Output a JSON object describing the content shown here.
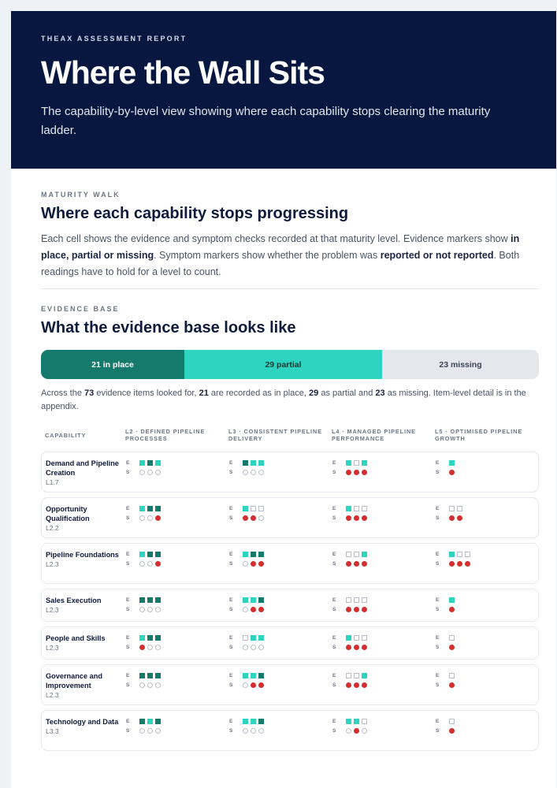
{
  "header": {
    "eyebrow": "THEAX ASSESSMENT REPORT",
    "title": "Where the Wall Sits",
    "subtitle": "The capability-by-level view showing where each capability stops clearing the maturity ladder."
  },
  "walk": {
    "eyebrow": "MATURITY WALK",
    "title": "Where each capability stops progressing",
    "intro_a": "Each cell shows the evidence and symptom checks recorded at that maturity level. Evidence markers show ",
    "intro_b": "in place, partial or missing",
    "intro_c": ". Symptom markers show whether the problem was ",
    "intro_d": "reported or not reported",
    "intro_e": ". Both readings have to hold for a level to count."
  },
  "evidence": {
    "eyebrow": "EVIDENCE BASE",
    "title": "What the evidence base looks like",
    "in_place": 21,
    "partial": 29,
    "missing": 23,
    "in_place_label": "21 in place",
    "partial_label": "29 partial",
    "missing_label": "23 missing",
    "summary_a": "Across the ",
    "summary_total": "73",
    "summary_b": " evidence items looked for, ",
    "summary_in": "21",
    "summary_c": " are recorded as in place, ",
    "summary_pa": "29",
    "summary_d": " as partial and ",
    "summary_mi": "23",
    "summary_e": " as missing. Item-level detail is in the appendix."
  },
  "colors": {
    "in_place": "#147a6c",
    "partial": "#2dd4bf",
    "missing": "#e4e7eb",
    "reported": "#d32f2f",
    "navy": "#08173f"
  },
  "table": {
    "columns": [
      "CAPABILITY",
      "L2 · DEFINED PIPELINE PROCESSES",
      "L3 · CONSISTENT PIPELINE DELIVERY",
      "L4 · MANAGED PIPELINE PERFORMANCE",
      "L5 · OPTIMISED PIPELINE GROWTH"
    ],
    "evidence_tag": "E",
    "symptom_tag": "S",
    "rows": [
      {
        "name": "Demand and Pipeline Creation",
        "level": "L1.7",
        "cells": [
          {
            "e": [
              "pa",
              "in",
              "pa"
            ],
            "s": [
              "not",
              "not",
              "not"
            ]
          },
          {
            "e": [
              "in",
              "pa",
              "pa"
            ],
            "s": [
              "not",
              "not",
              "not"
            ]
          },
          {
            "e": [
              "pa",
              "mi",
              "pa"
            ],
            "s": [
              "rep",
              "rep",
              "rep"
            ]
          },
          {
            "e": [
              "pa"
            ],
            "s": [
              "rep"
            ]
          }
        ]
      },
      {
        "name": "Opportunity Qualification",
        "level": "L2.2",
        "cells": [
          {
            "e": [
              "pa",
              "in",
              "in"
            ],
            "s": [
              "not",
              "not",
              "rep"
            ]
          },
          {
            "e": [
              "pa",
              "mi",
              "mi"
            ],
            "s": [
              "rep",
              "rep",
              "not"
            ]
          },
          {
            "e": [
              "pa",
              "mi",
              "mi"
            ],
            "s": [
              "rep",
              "rep",
              "rep"
            ]
          },
          {
            "e": [
              "mi",
              "mi"
            ],
            "s": [
              "rep",
              "rep"
            ]
          }
        ]
      },
      {
        "name": "Pipeline Foundations",
        "level": "L2.3",
        "cells": [
          {
            "e": [
              "pa",
              "in",
              "in"
            ],
            "s": [
              "not",
              "not",
              "rep"
            ]
          },
          {
            "e": [
              "pa",
              "in",
              "in"
            ],
            "s": [
              "not",
              "rep",
              "rep"
            ]
          },
          {
            "e": [
              "mi",
              "mi",
              "pa"
            ],
            "s": [
              "rep",
              "rep",
              "rep"
            ]
          },
          {
            "e": [
              "pa",
              "mi",
              "mi"
            ],
            "s": [
              "rep",
              "rep",
              "rep"
            ]
          }
        ]
      },
      {
        "name": "Sales Execution",
        "level": "L2.3",
        "cells": [
          {
            "e": [
              "in",
              "in",
              "in"
            ],
            "s": [
              "not",
              "not",
              "not"
            ]
          },
          {
            "e": [
              "pa",
              "pa",
              "in"
            ],
            "s": [
              "not",
              "rep",
              "rep"
            ]
          },
          {
            "e": [
              "mi",
              "mi",
              "mi"
            ],
            "s": [
              "rep",
              "rep",
              "rep"
            ]
          },
          {
            "e": [
              "pa"
            ],
            "s": [
              "rep"
            ]
          }
        ]
      },
      {
        "name": "People and Skills",
        "level": "L2.3",
        "cells": [
          {
            "e": [
              "pa",
              "in",
              "in"
            ],
            "s": [
              "rep",
              "not",
              "not"
            ]
          },
          {
            "e": [
              "mi",
              "pa",
              "pa"
            ],
            "s": [
              "not",
              "not",
              "not"
            ]
          },
          {
            "e": [
              "pa",
              "mi",
              "mi"
            ],
            "s": [
              "rep",
              "rep",
              "rep"
            ]
          },
          {
            "e": [
              "mi"
            ],
            "s": [
              "rep"
            ]
          }
        ]
      },
      {
        "name": "Governance and Improvement",
        "level": "L2.3",
        "cells": [
          {
            "e": [
              "in",
              "in",
              "in"
            ],
            "s": [
              "not",
              "not",
              "not"
            ]
          },
          {
            "e": [
              "pa",
              "pa",
              "in"
            ],
            "s": [
              "not",
              "rep",
              "rep"
            ]
          },
          {
            "e": [
              "mi",
              "mi",
              "pa"
            ],
            "s": [
              "rep",
              "rep",
              "rep"
            ]
          },
          {
            "e": [
              "mi"
            ],
            "s": [
              "rep"
            ]
          }
        ]
      },
      {
        "name": "Technology and Data",
        "level": "L3.3",
        "cells": [
          {
            "e": [
              "in",
              "pa",
              "in"
            ],
            "s": [
              "not",
              "not",
              "not"
            ]
          },
          {
            "e": [
              "pa",
              "pa",
              "in"
            ],
            "s": [
              "not",
              "not",
              "not"
            ]
          },
          {
            "e": [
              "pa",
              "pa",
              "mi"
            ],
            "s": [
              "not",
              "rep",
              "not"
            ]
          },
          {
            "e": [
              "mi"
            ],
            "s": [
              "rep"
            ]
          }
        ]
      }
    ]
  }
}
